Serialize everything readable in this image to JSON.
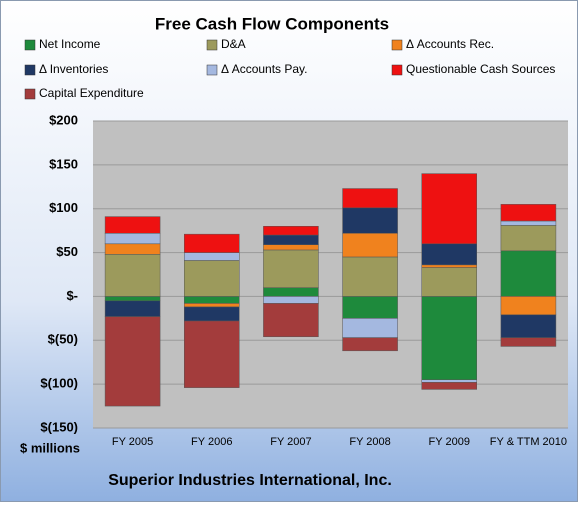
{
  "chart_data": {
    "type": "stacked-bar",
    "title": "Free Cash Flow Components",
    "y_unit_label": "$ millions",
    "footer": "Superior Industries International, Inc.",
    "categories": [
      "FY 2005",
      "FY 2006",
      "FY 2007",
      "FY 2008",
      "FY 2009",
      "FY & TTM 2010"
    ],
    "series": [
      {
        "name": "Net Income",
        "color": "#1e8a3c",
        "values": [
          -5,
          -8,
          10,
          -25,
          -95,
          52
        ]
      },
      {
        "name": "D&A",
        "color": "#9c9a5c",
        "values": [
          48,
          41,
          43,
          45,
          33,
          29
        ]
      },
      {
        "name": "Δ Accounts Rec.",
        "color": "#f0821e",
        "values": [
          12,
          -4,
          6,
          27,
          3,
          -21
        ]
      },
      {
        "name": "Δ Inventories",
        "color": "#1f3864",
        "values": [
          -18,
          -16,
          11,
          29,
          24,
          -26
        ]
      },
      {
        "name": "Δ Accounts Pay.",
        "color": "#a4b8e0",
        "values": [
          12,
          9,
          -8,
          -22,
          -3,
          5
        ]
      },
      {
        "name": "Questionable Cash Sources",
        "color": "#ee1111",
        "values": [
          19,
          21,
          10,
          22,
          80,
          19
        ]
      },
      {
        "name": "Capital Expenditure",
        "color": "#a33c3c",
        "values": [
          -102,
          -76,
          -38,
          -15,
          -8,
          -10
        ]
      }
    ],
    "ylim": [
      -150,
      200
    ],
    "yticks": [
      {
        "value": -150,
        "label": "$(150)"
      },
      {
        "value": -100,
        "label": "$(100)"
      },
      {
        "value": -50,
        "label": "$(50)"
      },
      {
        "value": 0,
        "label": "$-"
      },
      {
        "value": 50,
        "label": "$50"
      },
      {
        "value": 100,
        "label": "$100"
      },
      {
        "value": 150,
        "label": "$150"
      },
      {
        "value": 200,
        "label": "$200"
      }
    ],
    "grid": true
  }
}
